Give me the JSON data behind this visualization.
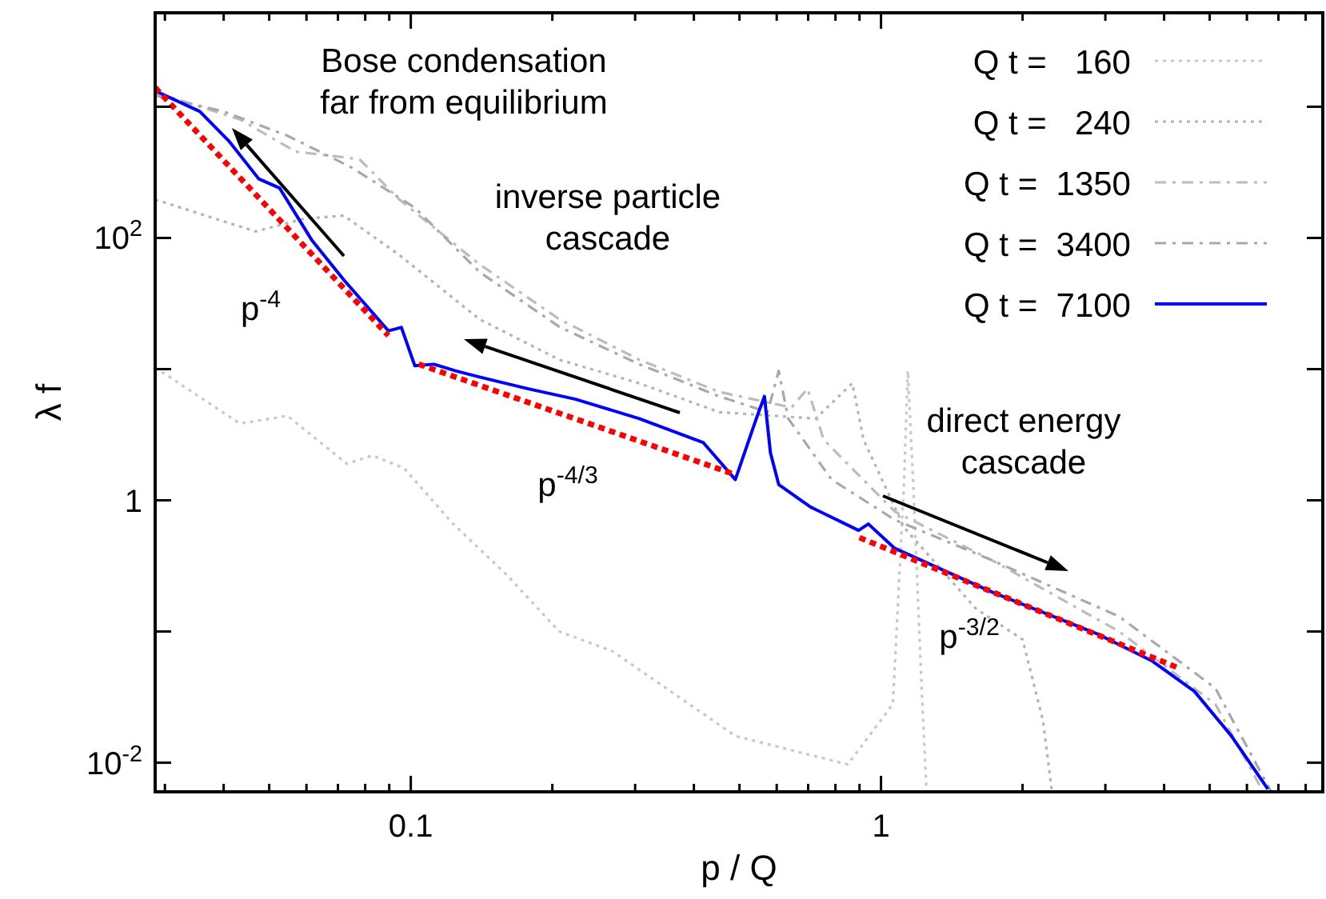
{
  "chart_data": {
    "type": "line",
    "xlabel": "p / Q",
    "ylabel": "λ f",
    "log": "xy",
    "grid": false,
    "legend": "top right",
    "xlim": [
      0.0286,
      8.7
    ],
    "ylim": [
      0.006,
      5200
    ],
    "xticks": [
      {
        "value": 0.03,
        "label": null
      },
      {
        "value": 0.04,
        "label": null
      },
      {
        "value": 0.05,
        "label": null
      },
      {
        "value": 0.06,
        "label": null
      },
      {
        "value": 0.07,
        "label": null
      },
      {
        "value": 0.08,
        "label": null
      },
      {
        "value": 0.09,
        "label": null
      },
      0.1,
      {
        "value": 0.2,
        "label": null
      },
      {
        "value": 0.3,
        "label": null
      },
      {
        "value": 0.4,
        "label": null
      },
      {
        "value": 0.5,
        "label": null
      },
      {
        "value": 0.6,
        "label": null
      },
      {
        "value": 0.7,
        "label": null
      },
      {
        "value": 0.8,
        "label": null
      },
      {
        "value": 0.9,
        "label": null
      },
      1,
      {
        "value": 2,
        "label": null
      },
      {
        "value": 3,
        "label": null
      },
      {
        "value": 4,
        "label": null
      },
      {
        "value": 5,
        "label": null
      },
      {
        "value": 6,
        "label": null
      },
      {
        "value": 7,
        "label": null
      },
      {
        "value": 8,
        "label": null
      }
    ],
    "yticks": [
      {
        "value": 0.01,
        "label": "10$^{-2}$"
      },
      {
        "value": 0.1,
        "label": null
      },
      1,
      {
        "value": 10,
        "label": null
      },
      {
        "value": 100,
        "label": "10$^{2}$"
      },
      {
        "value": 1000,
        "label": null
      }
    ],
    "series": [
      {
        "name": "Q t =   160",
        "color": "#c8c8c8",
        "line_style": "dotted",
        "x": [
          0.0286,
          0.0433,
          0.0547,
          0.0731,
          0.0829,
          0.0969,
          0.1226,
          0.16,
          0.207,
          0.268,
          0.49,
          0.85,
          1.06,
          1.12,
          1.14,
          1.17,
          1.22,
          1.25
        ],
        "values": [
          10.3,
          3.85,
          4.4,
          1.9,
          2.2,
          1.75,
          0.67,
          0.27,
          0.1,
          0.071,
          0.016,
          0.0097,
          0.028,
          1.44,
          9.7,
          1.44,
          0.037,
          0.006
        ]
      },
      {
        "name": "Q t =   240",
        "color": "#b4b4b4",
        "line_style": "dotted",
        "x": [
          0.0286,
          0.0468,
          0.0592,
          0.072,
          0.0946,
          0.14,
          0.207,
          0.306,
          0.453,
          0.726,
          0.869,
          0.918,
          1.12,
          1.59,
          2.0,
          2.21,
          2.31
        ],
        "values": [
          196,
          112,
          140,
          148,
          74,
          24,
          11.8,
          7.8,
          4.7,
          4.2,
          7.8,
          2.9,
          0.62,
          0.15,
          0.087,
          0.021,
          0.006
        ]
      },
      {
        "name": "Q t =  1350",
        "color": "#bcbcbc",
        "line_style": "dashed",
        "x": [
          0.0286,
          0.0433,
          0.0569,
          0.0778,
          0.0946,
          0.14,
          0.207,
          0.306,
          0.453,
          0.645,
          0.698,
          0.755,
          1.07,
          1.72,
          3.21,
          5.14,
          6.5
        ],
        "values": [
          1290,
          800,
          455,
          398,
          196,
          63,
          24,
          11.8,
          6.7,
          5.1,
          7.1,
          2.9,
          0.82,
          0.35,
          0.1,
          0.028,
          0.006
        ]
      },
      {
        "name": "Q t =  3400",
        "color": "#a8a8a8",
        "line_style": "dashed",
        "x": [
          0.0286,
          0.04,
          0.0547,
          0.0748,
          0.102,
          0.14,
          0.207,
          0.306,
          0.453,
          0.574,
          0.606,
          0.635,
          0.785,
          1.07,
          1.72,
          3.21,
          5.14,
          6.76
        ],
        "values": [
          1220,
          920,
          600,
          345,
          170,
          55,
          21,
          10.9,
          6.2,
          4.7,
          9.7,
          4.2,
          1.44,
          0.71,
          0.35,
          0.13,
          0.037,
          0.006
        ]
      },
      {
        "name": "Q t =  7100",
        "color": "#0000ff",
        "line_style": "solid",
        "x": [
          0.0286,
          0.0356,
          0.041,
          0.0475,
          0.0526,
          0.0615,
          0.072,
          0.0896,
          0.0955,
          0.102,
          0.112,
          0.1245,
          0.14,
          0.177,
          0.224,
          0.306,
          0.419,
          0.49,
          0.543,
          0.565,
          0.582,
          0.606,
          0.708,
          0.896,
          0.94,
          1.07,
          1.72,
          2.9,
          3.76,
          4.64,
          5.56,
          6.65
        ],
        "values": [
          1320,
          920,
          550,
          282,
          240,
          97,
          48,
          19.6,
          20.8,
          10.6,
          10.9,
          9.7,
          8.7,
          7.1,
          5.9,
          4.2,
          2.75,
          1.44,
          4.2,
          6.2,
          2.3,
          1.32,
          0.89,
          0.59,
          0.66,
          0.43,
          0.2,
          0.095,
          0.06,
          0.035,
          0.016,
          0.0063
        ]
      },
      {
        "color": "#ff0000",
        "line_style": "dotted",
        "x": [
          0.0286,
          0.0896
        ],
        "values": [
          1400,
          18
        ]
      },
      {
        "color": "#ff0000",
        "line_style": "dotted",
        "x": [
          0.104,
          0.49
        ],
        "values": [
          10.9,
          1.57
        ]
      },
      {
        "color": "#ff0000",
        "line_style": "dotted",
        "x": [
          0.9,
          4.33
        ],
        "values": [
          0.52,
          0.052
        ]
      }
    ],
    "annotations": [
      "Bose condensation\nfar from equilibrium",
      "inverse particle\ncascade",
      "p$^{-4}$",
      "p$^{-4/3}$",
      "direct energy\ncascade",
      "p$^{-3/2}$"
    ]
  }
}
